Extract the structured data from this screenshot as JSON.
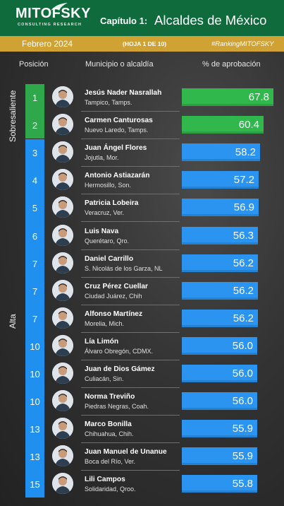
{
  "header": {
    "logo": "MITOFSKY",
    "logo_sub": "CONSULTING RESEARCH",
    "chapter": "Capítulo 1:",
    "title": "Alcaldes de México",
    "month": "Febrero  2024",
    "sheet": "(HOJA 1 DE 10)",
    "hashtag": "#RankingMITOFSKY"
  },
  "columns": {
    "position": "Posición",
    "municipality": "Municipio o alcaldía",
    "approval": "% de aprobación"
  },
  "categories": [
    {
      "label": "Sobresaliente",
      "color": "#2ea84a",
      "rows": [
        0,
        1
      ]
    },
    {
      "label": "Alta",
      "color": "#1f8ff0",
      "rows": [
        2,
        14
      ]
    }
  ],
  "colors": {
    "header_green": "#0f6b3c",
    "subbar_gold": "#cfa233",
    "bar_green": "#31b84d",
    "bar_blue": "#2b93f0"
  },
  "chart_data": {
    "type": "bar",
    "orientation": "horizontal",
    "xlim": [
      0,
      70
    ],
    "rows": [
      {
        "rank": "1",
        "name": "Jesús Nader Nasrallah",
        "place": "Tampico, Tamps.",
        "value": 67.8,
        "category": "Sobresaliente"
      },
      {
        "rank": "2",
        "name": "Carmen Canturosas",
        "place": "Nuevo Laredo, Tamps.",
        "value": 60.4,
        "category": "Sobresaliente"
      },
      {
        "rank": "3",
        "name": "Juan Ángel Flores",
        "place": "Jojutla, Mor.",
        "value": 58.2,
        "category": "Alta"
      },
      {
        "rank": "4",
        "name": "Antonio Astiazarán",
        "place": "Hermosillo, Son.",
        "value": 57.2,
        "category": "Alta"
      },
      {
        "rank": "5",
        "name": "Patricia Lobeira",
        "place": "Veracruz, Ver.",
        "value": 56.9,
        "category": "Alta"
      },
      {
        "rank": "6",
        "name": "Luis Nava",
        "place": "Querétaro, Qro.",
        "value": 56.3,
        "category": "Alta"
      },
      {
        "rank": "7",
        "name": "Daniel Carrillo",
        "place": "S. Nicolás de los Garza, NL",
        "value": 56.2,
        "category": "Alta"
      },
      {
        "rank": "7",
        "name": "Cruz Pérez Cuellar",
        "place": "Ciudad Juárez, Chih",
        "value": 56.2,
        "category": "Alta"
      },
      {
        "rank": "7",
        "name": "Alfonso Martínez",
        "place": "Morelia, Mich.",
        "value": 56.2,
        "category": "Alta"
      },
      {
        "rank": "10",
        "name": "Lía Limón",
        "place": "Álvaro Obregón, CDMX.",
        "value": 56.0,
        "category": "Alta"
      },
      {
        "rank": "10",
        "name": "Juan de Dios Gámez",
        "place": "Culiacán, Sin.",
        "value": 56.0,
        "category": "Alta"
      },
      {
        "rank": "10",
        "name": "Norma Treviño",
        "place": "Piedras Negras, Coah.",
        "value": 56.0,
        "category": "Alta"
      },
      {
        "rank": "13",
        "name": "Marco Bonilla",
        "place": "Chihuahua, Chih.",
        "value": 55.9,
        "category": "Alta"
      },
      {
        "rank": "13",
        "name": "Juan Manuel de Unanue",
        "place": "Boca del Río, Ver.",
        "value": 55.9,
        "category": "Alta"
      },
      {
        "rank": "15",
        "name": "Lili Campos",
        "place": "Solidaridad, Qroo.",
        "value": 55.8,
        "category": "Alta"
      }
    ]
  }
}
